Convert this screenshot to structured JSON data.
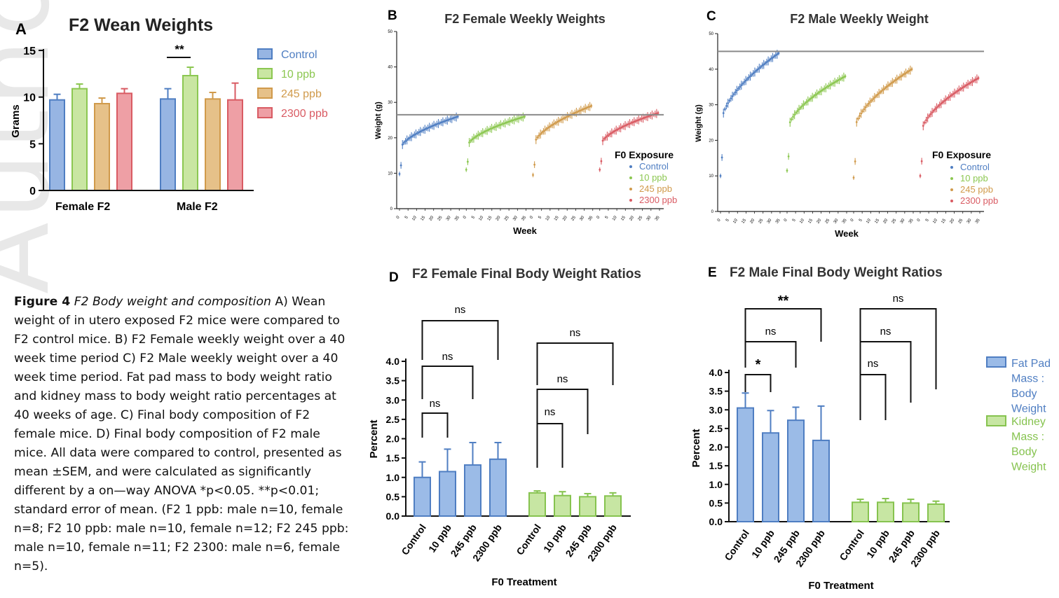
{
  "watermark": "Author Manuscript",
  "colors": {
    "control": "#4f7ec2",
    "p10": "#8cc751",
    "p245": "#d09a4b",
    "p2300": "#d95b63",
    "controlFill": "#97b5e3",
    "p10Fill": "#c9e6a2",
    "p245Fill": "#e6c189",
    "p2300Fill": "#ee9fa5",
    "fat": "#4f7ec2",
    "fatFill": "#9bbbe7",
    "kidney": "#86c34f",
    "kidneyFill": "#c7e6a3"
  },
  "caption": {
    "label": "Figure 4",
    "title": "F2 Body weight and composition",
    "body": "A) Wean weight of in utero exposed F2 mice were compared to F2 control mice.  B) F2 Female weekly weight over a 40 week time period C) F2 Male weekly weight over a 40 week time period. Fat pad mass to body weight ratio and kidney mass to body weight ratio percentages at 40 weeks of age. C) Final body composition of F2 female mice. D) Final body composition of F2 male mice. All data were compared to control, presented as mean ±SEM, and were calculated as significantly different by a on—way ANOVA *p<0.05. **p<0.01; standard error of mean. (F2 1 ppb: male n=10, female n=8; F2 10 ppb: male n=10, female n=12; F2 245 ppb: male n=10, female n=11; F2 2300: male n=6, female n=5)."
  },
  "chart_data": [
    {
      "panel": "A",
      "type": "bar",
      "title": "F2 Wean Weights",
      "ylabel": "Grams",
      "xlabel": "",
      "ylim": [
        0,
        15
      ],
      "yticks": [
        "0",
        "5",
        "10",
        "15"
      ],
      "groups": [
        "Female F2",
        "Male F2"
      ],
      "series": [
        {
          "name": "Control",
          "values": [
            9.7,
            9.8
          ],
          "err": [
            0.6,
            1.1
          ]
        },
        {
          "name": "10 ppb",
          "values": [
            10.9,
            12.3
          ],
          "err": [
            0.5,
            0.9
          ]
        },
        {
          "name": "245 ppb",
          "values": [
            9.3,
            9.8
          ],
          "err": [
            0.6,
            0.7
          ]
        },
        {
          "name": "2300 ppb",
          "values": [
            10.4,
            9.7
          ],
          "err": [
            0.5,
            1.8
          ]
        }
      ],
      "annotations": [
        "**"
      ]
    },
    {
      "panel": "B",
      "type": "scatter",
      "title": "F2 Female Weekly Weights",
      "ylabel": "Weight (g)",
      "xlabel": "Week",
      "ylim": [
        0,
        50
      ],
      "yticks": [
        "0",
        "10",
        "20",
        "30",
        "40",
        "50"
      ],
      "xticks": [
        "0",
        "5",
        "10",
        "15",
        "20",
        "25",
        "30",
        "35"
      ],
      "reference_line": 26.5,
      "legend_title": "F0 Exposure",
      "series_start": [
        9.8,
        11,
        9.5,
        11
      ],
      "series_end": [
        26,
        26,
        29,
        27
      ],
      "series": [
        "Control",
        "10 ppb",
        "245 ppb",
        "2300 ppb"
      ]
    },
    {
      "panel": "C",
      "type": "scatter",
      "title": "F2 Male Weekly Weight",
      "ylabel": "Weight (g)",
      "xlabel": "Week",
      "ylim": [
        0,
        50
      ],
      "yticks": [
        "0",
        "10",
        "20",
        "30",
        "40",
        "50"
      ],
      "xticks": [
        "0",
        "5",
        "10",
        "15",
        "20",
        "25",
        "30",
        "35"
      ],
      "reference_line": 45,
      "legend_title": "F0 Exposure",
      "series_start": [
        10,
        11.5,
        9.5,
        10
      ],
      "series_end": [
        44.5,
        38,
        40,
        37.5
      ],
      "series": [
        "Control",
        "10 ppb",
        "245 ppb",
        "2300 ppb"
      ]
    },
    {
      "panel": "D",
      "type": "bar",
      "title": "F2 Female Final Body Weight Ratios",
      "ylabel": "Percent",
      "xlabel": "F0 Treatment",
      "ylim": [
        0,
        4.0
      ],
      "yticks": [
        "0.0",
        "0.5",
        "1.0",
        "1.5",
        "2.0",
        "2.5",
        "3.0",
        "3.5",
        "4.0"
      ],
      "categories": [
        "Control",
        "10 ppb",
        "245 ppb",
        "2300 ppb"
      ],
      "series": [
        {
          "name": "Fat Pad Mass : Body Weight",
          "values": [
            1.0,
            1.15,
            1.32,
            1.47
          ],
          "err": [
            0.4,
            0.58,
            0.58,
            0.43
          ]
        },
        {
          "name": "Kidney Mass : Body Weight",
          "values": [
            0.6,
            0.53,
            0.5,
            0.52
          ],
          "err": [
            0.05,
            0.1,
            0.08,
            0.08
          ]
        }
      ],
      "annotations": [
        "ns",
        "ns",
        "ns",
        "ns",
        "ns",
        "ns"
      ]
    },
    {
      "panel": "E",
      "type": "bar",
      "title": "F2 Male Final Body Weight Ratios",
      "ylabel": "Percent",
      "xlabel": "F0 Treatment",
      "ylim": [
        0,
        4.0
      ],
      "yticks": [
        "0.0",
        "0.5",
        "1.0",
        "1.5",
        "2.0",
        "2.5",
        "3.0",
        "3.5",
        "4.0"
      ],
      "categories": [
        "Control",
        "10 ppb",
        "245 ppb",
        "2300 ppb"
      ],
      "series": [
        {
          "name": "Fat Pad Mass : Body Weight",
          "values": [
            3.05,
            2.38,
            2.72,
            2.18
          ],
          "err": [
            0.4,
            0.6,
            0.35,
            0.92
          ]
        },
        {
          "name": "Kidney Mass : Body Weight",
          "values": [
            0.52,
            0.52,
            0.5,
            0.47
          ],
          "err": [
            0.08,
            0.1,
            0.1,
            0.08
          ]
        }
      ],
      "annotations": [
        "*",
        "ns",
        "**",
        "ns",
        "ns",
        "ns"
      ]
    }
  ],
  "legend_fr": [
    "Fat Pad",
    "Mass :",
    "Body",
    "Weight",
    "Kidney",
    "Mass :",
    "Body",
    "Weight"
  ]
}
